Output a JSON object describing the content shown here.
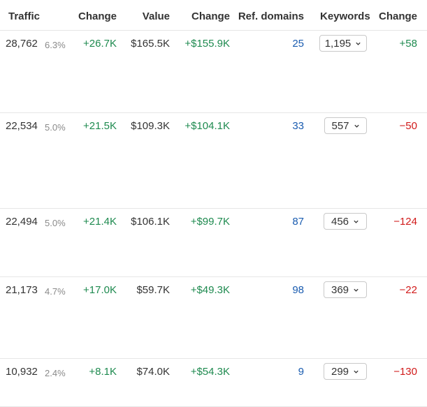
{
  "headers": {
    "traffic": "Traffic",
    "change1": "Change",
    "value": "Value",
    "change2": "Change",
    "ref_domains": "Ref. domains",
    "keywords": "Keywords",
    "change3": "Change"
  },
  "rows": [
    {
      "traffic": "28,762",
      "pct": "6.3%",
      "traffic_change": "+26.7K",
      "value": "$165.5K",
      "value_change": "+$155.9K",
      "ref_domains": "25",
      "keywords": "1,195",
      "kw_change": "+58"
    },
    {
      "traffic": "22,534",
      "pct": "5.0%",
      "traffic_change": "+21.5K",
      "value": "$109.3K",
      "value_change": "+$104.1K",
      "ref_domains": "33",
      "keywords": "557",
      "kw_change": "−50"
    },
    {
      "traffic": "22,494",
      "pct": "5.0%",
      "traffic_change": "+21.4K",
      "value": "$106.1K",
      "value_change": "+$99.7K",
      "ref_domains": "87",
      "keywords": "456",
      "kw_change": "−124"
    },
    {
      "traffic": "21,173",
      "pct": "4.7%",
      "traffic_change": "+17.0K",
      "value": "$59.7K",
      "value_change": "+$49.3K",
      "ref_domains": "98",
      "keywords": "369",
      "kw_change": "−22"
    },
    {
      "traffic": "10,932",
      "pct": "2.4%",
      "traffic_change": "+8.1K",
      "value": "$74.0K",
      "value_change": "+$54.3K",
      "ref_domains": "9",
      "keywords": "299",
      "kw_change": "−130"
    }
  ],
  "icons": {
    "dropdown": "chevron-down-icon"
  },
  "colors": {
    "positive": "#1e8a4f",
    "negative": "#d11a1a",
    "link": "#1a5cb0"
  }
}
